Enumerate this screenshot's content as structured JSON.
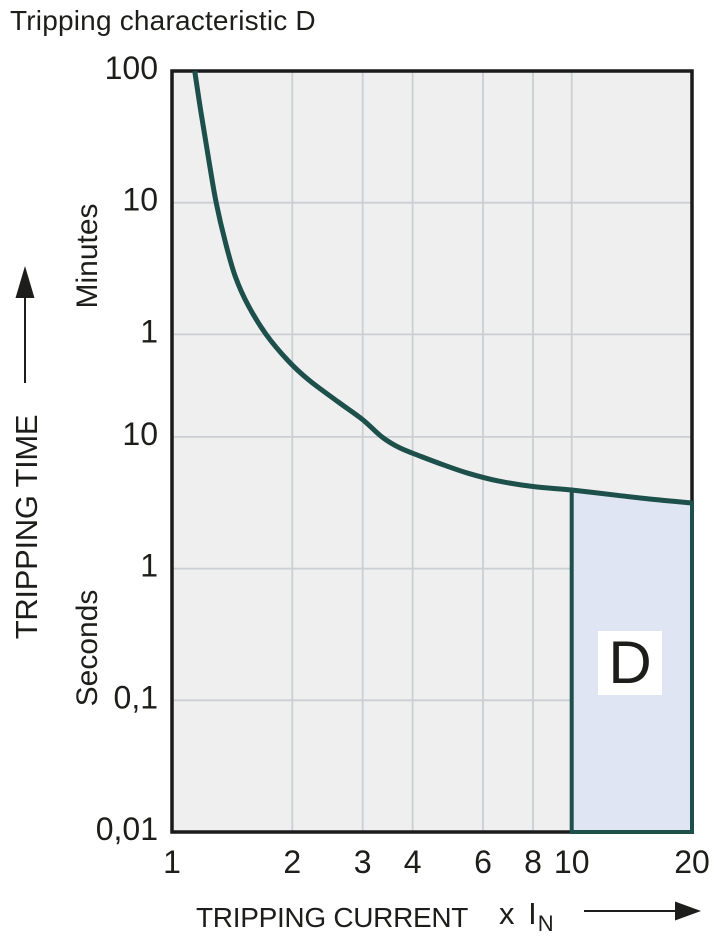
{
  "title": "Tripping characteristic D",
  "y_axis": {
    "label": "TRIPPING TIME",
    "unit_upper": "Minutes",
    "unit_lower": "Seconds",
    "tick_labels_minutes": [
      "100",
      "10",
      "1"
    ],
    "tick_labels_seconds": [
      "10",
      "1",
      "0,1",
      "0,01"
    ]
  },
  "x_axis": {
    "label": "TRIPPING CURRENT",
    "unit_prefix": "x I",
    "unit_sub": "N",
    "tick_labels": [
      "1",
      "2",
      "3",
      "4",
      "6",
      "8",
      "10",
      "20"
    ]
  },
  "region": {
    "label": "D"
  },
  "colors": {
    "background": "#ffffff",
    "plot_background": "#efefef",
    "gridline": "#cbced2",
    "frame": "#1a1a1a",
    "curve": "#1d4f4b",
    "region_fill": "#dfe5f3",
    "region_border": "#1d4f4b",
    "text": "#1d1d1b"
  },
  "chart_data": {
    "type": "line",
    "title": "Tripping characteristic D",
    "xlabel": "TRIPPING CURRENT (x IN)",
    "ylabel": "TRIPPING TIME",
    "x_scale": "log",
    "y_scale": "log",
    "xlim": [
      1,
      20
    ],
    "ylim_seconds": [
      0.01,
      6000
    ],
    "x_ticks": [
      1,
      2,
      3,
      4,
      6,
      8,
      10,
      20
    ],
    "y_ticks": [
      {
        "text": "100",
        "unit": "minutes",
        "seconds": 6000
      },
      {
        "text": "10",
        "unit": "minutes",
        "seconds": 600
      },
      {
        "text": "1",
        "unit": "minutes",
        "seconds": 60
      },
      {
        "text": "10",
        "unit": "seconds",
        "seconds": 10
      },
      {
        "text": "1",
        "unit": "seconds",
        "seconds": 1
      },
      {
        "text": "0,1",
        "unit": "seconds",
        "seconds": 0.1
      },
      {
        "text": "0,01",
        "unit": "seconds",
        "seconds": 0.01
      }
    ],
    "x_gridlines": [
      2,
      3,
      4,
      6,
      8,
      10
    ],
    "y_gridlines_seconds": [
      600,
      60,
      10,
      1,
      0.1
    ],
    "grid": true,
    "series": [
      {
        "name": "Tripping characteristic D",
        "points_x_in_multiples_of_In_and_t_seconds": [
          [
            1.14,
            6000
          ],
          [
            1.18,
            3000
          ],
          [
            1.24,
            1200
          ],
          [
            1.29,
            600
          ],
          [
            1.36,
            300
          ],
          [
            1.44,
            165
          ],
          [
            1.55,
            100
          ],
          [
            1.72,
            60
          ],
          [
            1.95,
            38
          ],
          [
            2.2,
            27
          ],
          [
            2.6,
            18.5
          ],
          [
            3.0,
            13.5
          ],
          [
            3.35,
            10
          ],
          [
            3.7,
            8.3
          ],
          [
            4.2,
            7.1
          ],
          [
            4.8,
            6.1
          ],
          [
            5.5,
            5.3
          ],
          [
            6.5,
            4.65
          ],
          [
            8.0,
            4.2
          ],
          [
            10.0,
            3.95
          ],
          [
            13.0,
            3.6
          ],
          [
            16.0,
            3.35
          ],
          [
            20.0,
            3.15
          ]
        ]
      }
    ],
    "shaded_region": {
      "label": "D",
      "x_from": 10,
      "x_to": 20,
      "bottom_seconds": 0.01,
      "top": "curve"
    }
  }
}
